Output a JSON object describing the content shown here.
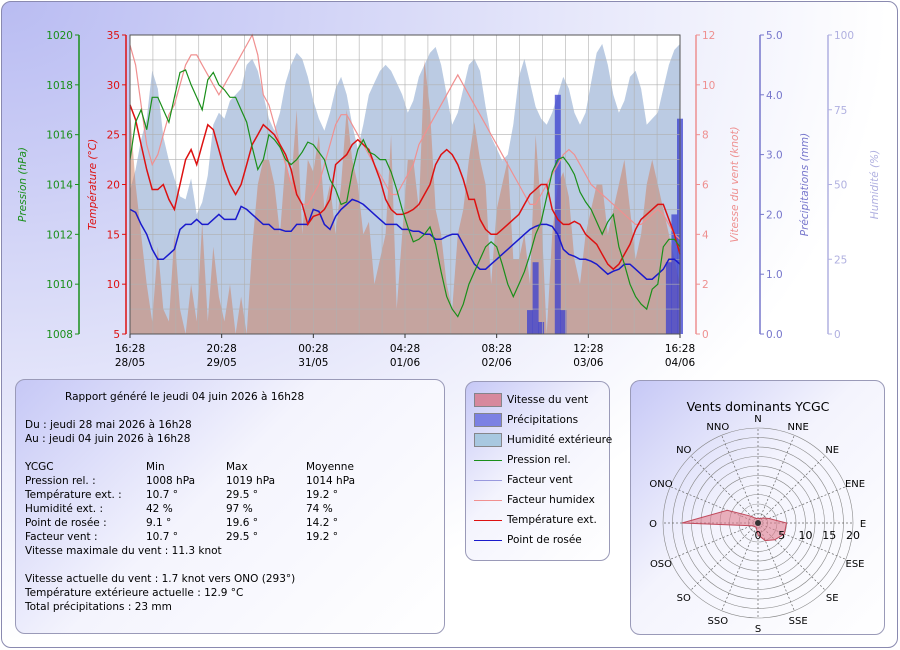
{
  "chart_data": {
    "type": "line",
    "x_ticks": [
      {
        "time": "16:28",
        "date": "28/05"
      },
      {
        "time": "20:28",
        "date": "29/05"
      },
      {
        "time": "00:28",
        "date": "31/05"
      },
      {
        "time": "04:28",
        "date": "01/06"
      },
      {
        "time": "08:28",
        "date": "02/06"
      },
      {
        "time": "12:28",
        "date": "03/06"
      },
      {
        "time": "16:28",
        "date": "04/06"
      }
    ],
    "axes": {
      "pressure": {
        "label": "Pression (hPa)",
        "range": [
          1008,
          1020
        ],
        "ticks": [
          "1008",
          "1010",
          "1012",
          "1014",
          "1016",
          "1018",
          "1020"
        ],
        "color": "#1a8f1a"
      },
      "temperature": {
        "label": "Température (°C)",
        "range": [
          5,
          35
        ],
        "ticks": [
          "5",
          "10",
          "15",
          "20",
          "25",
          "30",
          "35"
        ],
        "color": "#dd1111"
      },
      "wind": {
        "label": "Vitesse du vent (knot)",
        "range": [
          0,
          12
        ],
        "ticks": [
          "0",
          "2",
          "4",
          "6",
          "8",
          "10",
          "12"
        ],
        "color": "#ee9090"
      },
      "rain": {
        "label": "Précipitations (mm)",
        "range": [
          0,
          5
        ],
        "ticks": [
          "0.0",
          "1.0",
          "2.0",
          "3.0",
          "4.0",
          "5.0"
        ],
        "color": "#7777cc"
      },
      "humidity": {
        "label": "Humidité (%)",
        "range": [
          0,
          100
        ],
        "ticks": [
          "0",
          "25",
          "50",
          "75",
          "100"
        ],
        "color": "#b0b0e0"
      }
    },
    "grid": true,
    "series": [
      {
        "name": "Humidité extérieure",
        "unit": "%",
        "values": [
          48,
          55,
          65,
          72,
          88,
          82,
          66,
          58,
          52,
          46,
          45,
          52,
          40,
          44,
          53,
          70,
          74,
          72,
          78,
          80,
          82,
          90,
          92,
          88,
          80,
          72,
          68,
          74,
          84,
          90,
          94,
          92,
          86,
          78,
          72,
          68,
          74,
          82,
          86,
          80,
          70,
          62,
          70,
          80,
          84,
          88,
          90,
          88,
          84,
          80,
          74,
          78,
          86,
          90,
          94,
          96,
          90,
          80,
          70,
          74,
          82,
          90,
          92,
          88,
          76,
          66,
          62,
          58,
          60,
          70,
          86,
          92,
          84,
          76,
          72,
          70,
          74,
          80,
          86,
          82,
          74,
          70,
          74,
          84,
          94,
          97,
          90,
          80,
          74,
          78,
          86,
          88,
          82,
          70,
          72,
          74,
          82,
          90,
          95,
          97
        ]
      },
      {
        "name": "Vitesse du vent",
        "unit": "knot",
        "values": [
          9,
          6,
          4,
          2,
          0.5,
          3.5,
          1,
          0.5,
          4,
          1,
          0,
          2,
          0.5,
          4.5,
          0.5,
          3.5,
          1.5,
          0.5,
          2,
          0,
          1.5,
          0,
          3.5,
          6,
          7,
          7,
          6,
          4,
          7,
          6,
          9,
          4,
          7,
          6.5,
          8,
          5,
          6,
          4,
          6,
          9,
          7,
          6,
          4,
          4.5,
          2,
          3,
          4,
          8,
          1,
          4,
          7,
          7,
          5,
          11,
          9,
          5,
          4,
          2,
          1,
          4,
          5,
          7,
          8.5,
          7,
          6,
          2,
          5,
          6,
          7,
          3,
          3,
          4,
          2,
          8,
          5,
          0,
          4,
          6,
          6.5,
          5.5,
          3,
          2,
          4,
          5,
          6,
          6,
          4,
          5,
          6,
          7,
          5,
          3,
          4,
          6,
          7,
          6,
          5,
          4,
          3,
          2
        ]
      },
      {
        "name": "Précipitations",
        "unit": "mm",
        "values": [
          0,
          0,
          0,
          0,
          0,
          0,
          0,
          0,
          0,
          0,
          0,
          0,
          0,
          0,
          0,
          0,
          0,
          0,
          0,
          0,
          0,
          0,
          0,
          0,
          0,
          0,
          0,
          0,
          0,
          0,
          0,
          0,
          0,
          0,
          0,
          0,
          0,
          0,
          0,
          0,
          0,
          0,
          0,
          0,
          0,
          0,
          0,
          0,
          0,
          0,
          0,
          0,
          0,
          0,
          0,
          0,
          0,
          0,
          0,
          0,
          0,
          0,
          0,
          0,
          0,
          0,
          0,
          0,
          0,
          0,
          0,
          0,
          0.4,
          1.2,
          0.2,
          0,
          0,
          4.0,
          0.4,
          0,
          0,
          0,
          0,
          0,
          0,
          0,
          0,
          0,
          0,
          0,
          0,
          0,
          0,
          0,
          0,
          0,
          0,
          1.2,
          2.0,
          3.6
        ]
      },
      {
        "name": "Pression rel.",
        "unit": "hPa",
        "values": [
          1015,
          1016.5,
          1017,
          1016.2,
          1017.5,
          1017.5,
          1017,
          1016.5,
          1017.5,
          1018.5,
          1018.6,
          1018,
          1017.5,
          1017,
          1018.2,
          1018.5,
          1018,
          1017.8,
          1017.5,
          1017.5,
          1017,
          1016.5,
          1015.5,
          1014.6,
          1015,
          1016,
          1015.8,
          1015.5,
          1015,
          1014.8,
          1015,
          1015.3,
          1015.7,
          1015.6,
          1015.3,
          1015,
          1014.2,
          1013.8,
          1013.2,
          1013.3,
          1014.5,
          1015.4,
          1015.8,
          1015.3,
          1015.2,
          1015,
          1015,
          1014.5,
          1013.8,
          1013,
          1012.3,
          1011.7,
          1011.8,
          1012,
          1012.3,
          1011.6,
          1010.5,
          1009.5,
          1009,
          1008.7,
          1009.2,
          1010,
          1010.5,
          1011,
          1011.5,
          1011.7,
          1011.5,
          1010.8,
          1010,
          1009.5,
          1010,
          1010.5,
          1011.2,
          1012,
          1012.5,
          1013.5,
          1014.5,
          1015,
          1015.1,
          1014.8,
          1014.4,
          1013.7,
          1013.3,
          1013,
          1012.5,
          1012,
          1012.5,
          1012.8,
          1011.5,
          1010.8,
          1010,
          1009.5,
          1009.2,
          1009,
          1009.8,
          1010,
          1011.5,
          1011.8,
          1011.8,
          1011.5
        ]
      },
      {
        "name": "Facteur vent",
        "unit": "°C",
        "values": [
          23,
          22,
          21,
          19,
          19.5,
          20,
          19,
          18,
          17.5,
          18.5,
          19.5,
          21,
          22,
          23,
          22.5,
          21.5,
          22,
          21,
          20,
          19,
          20,
          21,
          22,
          23,
          24,
          23.5,
          22,
          21,
          20,
          19,
          18,
          17,
          17,
          16.8,
          17,
          18,
          20,
          21,
          22,
          22.5,
          23,
          24,
          25,
          26,
          27,
          27.5,
          27,
          26,
          25,
          24,
          23,
          22,
          21,
          20,
          19,
          18,
          17.5,
          18,
          19,
          20,
          19,
          18,
          17,
          16.5,
          16.5,
          17,
          17.5,
          18,
          19,
          20,
          20.5,
          20,
          19.5,
          19,
          18.5,
          18.2,
          18,
          18.5,
          19.5,
          20.5,
          22,
          23,
          23.8,
          24,
          23.5,
          22.8,
          22,
          21,
          20,
          19,
          18,
          17,
          16,
          15,
          16,
          18,
          19.5,
          20,
          17,
          14
        ]
      },
      {
        "name": "Facteur humidex",
        "unit": "°C",
        "values": [
          34,
          32,
          28,
          24,
          22,
          23,
          25,
          27,
          28,
          30,
          32,
          33,
          33,
          32,
          31,
          30,
          29,
          30,
          31,
          32,
          33,
          34,
          35,
          33,
          29,
          28,
          26,
          24,
          22,
          20,
          19,
          18,
          18,
          19,
          20,
          22,
          24,
          26,
          27,
          27,
          26,
          25,
          24,
          23,
          22,
          21,
          20,
          19,
          19,
          20,
          21,
          22,
          24,
          25,
          26,
          27,
          28,
          29,
          30,
          31,
          30,
          29,
          28,
          27,
          26,
          25,
          24,
          23,
          22,
          21,
          20,
          19,
          18,
          18,
          19,
          20,
          21,
          22,
          23,
          23.5,
          23,
          22,
          21,
          20,
          19.5,
          19,
          18.5,
          18,
          17.5,
          17,
          16.5,
          16,
          16,
          16.5,
          17,
          17.5,
          17,
          16,
          15,
          14.5
        ]
      },
      {
        "name": "Température ext.",
        "unit": "°C",
        "values": [
          28,
          26.5,
          24,
          21.5,
          19.5,
          19.5,
          20,
          18.5,
          17.5,
          20,
          22.5,
          23.5,
          22,
          24,
          26,
          25.5,
          23.5,
          21.5,
          20,
          19,
          20,
          22,
          24,
          25,
          26,
          25.5,
          25,
          24,
          23,
          21.5,
          19,
          18,
          16,
          16.8,
          17,
          17.5,
          18.5,
          22,
          22.5,
          23,
          24,
          24.5,
          24,
          23.5,
          22,
          20.5,
          18.5,
          17.5,
          17,
          17,
          17.2,
          17.5,
          18,
          19,
          20,
          22,
          23,
          23.5,
          23,
          22,
          20.5,
          18.5,
          18.5,
          16.5,
          15.5,
          15,
          15,
          15.5,
          16,
          16.5,
          17,
          18,
          19,
          19.5,
          20,
          20,
          17.5,
          16.5,
          16,
          16,
          16.3,
          16,
          15,
          14.5,
          14,
          13,
          12,
          11.5,
          12,
          13,
          14,
          15.5,
          16.5,
          17,
          17.5,
          18,
          18,
          16.5,
          15,
          13
        ]
      },
      {
        "name": "Point de rosée",
        "unit": "°C",
        "values": [
          17.5,
          17.2,
          16,
          15,
          13.5,
          12.5,
          12.5,
          13,
          13.5,
          15.5,
          16,
          16,
          16.5,
          16,
          16,
          16.5,
          17,
          16.5,
          16.5,
          16.5,
          17.8,
          17.5,
          17,
          16.5,
          16,
          16,
          15.5,
          15.5,
          15.3,
          15.3,
          16,
          16,
          16,
          17.5,
          17.3,
          16,
          15.5,
          16.8,
          17.5,
          18,
          18.5,
          18.3,
          18,
          17.5,
          17,
          16.5,
          16,
          16,
          16,
          15.5,
          15.5,
          15.3,
          15.3,
          15,
          15,
          14.5,
          14.5,
          14.8,
          15,
          15,
          14,
          13,
          12,
          11.5,
          11.5,
          12,
          12.5,
          13,
          13.5,
          14,
          14.5,
          15,
          15.5,
          15.8,
          16,
          16,
          15.8,
          15,
          13.5,
          13,
          12.8,
          12.5,
          12.5,
          12.3,
          12,
          11.5,
          11,
          11.3,
          11.5,
          12,
          12,
          11.5,
          11,
          10.5,
          10.5,
          11,
          11.5,
          12.5,
          12.5,
          12
        ]
      }
    ]
  },
  "report": {
    "generated": "Rapport généré le jeudi 04 juin 2026 à 16h28",
    "from": "Du : jeudi 28 mai 2026 à 16h28",
    "to": "Au : jeudi 04 juin 2026 à 16h28",
    "header": [
      "YCGC",
      "Min",
      "Max",
      "Moyenne"
    ],
    "rows": [
      [
        "Pression rel. :",
        "1008 hPa",
        "1019 hPa",
        "1014 hPa"
      ],
      [
        "Température ext. :",
        "10.7 °",
        "29.5 °",
        "19.2 °"
      ],
      [
        "Humidité ext. :",
        "42 %",
        "97 %",
        "74 %"
      ],
      [
        "Point de rosée :",
        "9.1 °",
        "19.6 °",
        "14.2 °"
      ],
      [
        "Facteur vent :",
        "10.7 °",
        "29.5 °",
        "19.2 °"
      ]
    ],
    "max_wind": "Vitesse maximale du vent : 11.3 knot",
    "current_wind": "Vitesse actuelle du vent : 1.7 knot vers  ONO (293°)",
    "current_temp": "Température extérieure actuelle :  12.9 °C",
    "total_rain": "Total précipitations : 23 mm"
  },
  "legend": {
    "items": [
      {
        "label": "Vitesse du vent",
        "kind": "box",
        "color": "#d87c8e"
      },
      {
        "label": "Précipitations",
        "kind": "box",
        "color": "#6c72e0"
      },
      {
        "label": "Humidité extérieure",
        "kind": "box",
        "color": "#9fc4dc"
      },
      {
        "label": "Pression rel.",
        "kind": "line",
        "color": "#1a8f1a"
      },
      {
        "label": "Facteur vent",
        "kind": "line",
        "color": "#9999dd"
      },
      {
        "label": "Facteur humidex",
        "kind": "line",
        "color": "#f09090"
      },
      {
        "label": "Température ext.",
        "kind": "line",
        "color": "#dd1111"
      },
      {
        "label": "Point de rosée",
        "kind": "line",
        "color": "#1a1acc"
      }
    ]
  },
  "wind_rose": {
    "title": "Vents dominants YCGC",
    "directions": [
      "N",
      "NNE",
      "NE",
      "ENE",
      "E",
      "ESE",
      "SE",
      "SSE",
      "S",
      "SSO",
      "SO",
      "OSO",
      "O",
      "ONO",
      "NO",
      "NNO"
    ],
    "values": [
      1,
      1,
      1.5,
      2.5,
      6,
      6,
      5,
      4,
      2.5,
      1,
      1,
      1.5,
      16,
      7,
      2,
      1
    ],
    "scale_labels": [
      "0",
      "5",
      "10",
      "15",
      "20"
    ],
    "max": 20,
    "color": "#e07f8f"
  }
}
